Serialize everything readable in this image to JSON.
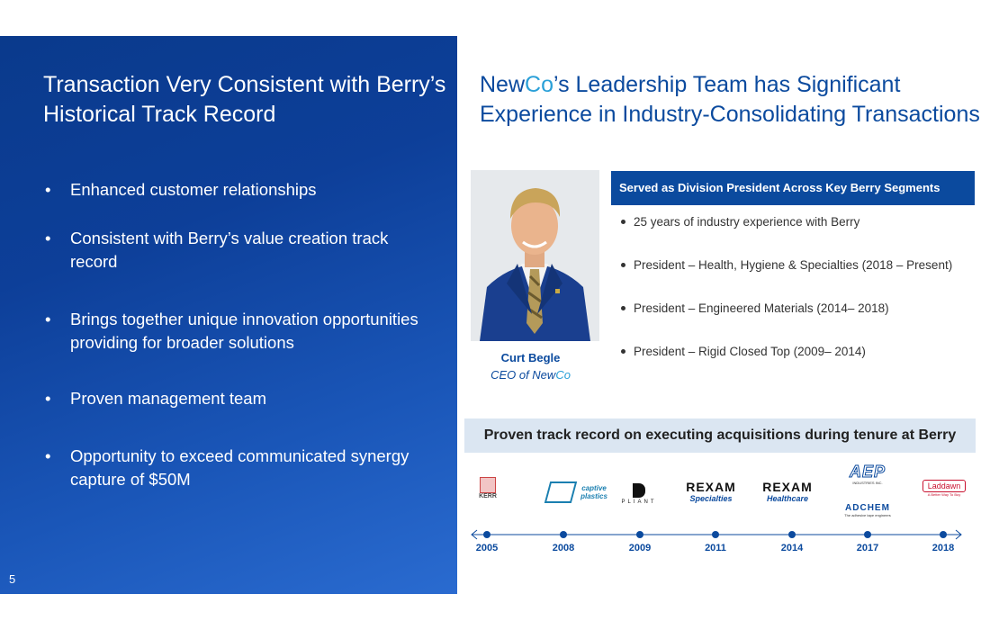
{
  "left": {
    "title_line1": "Transaction Very Consistent with Berry’s",
    "title_line2": "Historical Track Record",
    "bullets": [
      "Enhanced customer relationships",
      "Consistent with Berry’s value creation track record",
      "Brings together unique innovation opportunities providing for broader solutions",
      "Proven management team",
      "Opportunity to exceed communicated synergy capture of $50M"
    ],
    "page_number": "5"
  },
  "right": {
    "title_newco_a": "New",
    "title_newco_b": "Co",
    "title_rest_line1": "’s Leadership Team has Significant",
    "title_line2": "Experience in Industry-Consolidating Transactions",
    "ceo_name": "Curt Begle",
    "ceo_role_a": "CEO of New",
    "ceo_role_b": "Co",
    "division_header": "Served as Division President Across Key Berry Segments",
    "experience": [
      "25 years of industry experience with Berry",
      "President – Health, Hygiene & Specialties (2018 – Present)",
      "President – Engineered Materials (2014– 2018)",
      "President – Rigid Closed Top (2009– 2014)"
    ],
    "track_header": "Proven track record on executing acquisitions during tenure at Berry",
    "acquisitions": [
      {
        "year": "2005",
        "logo": "KERR"
      },
      {
        "year": "2008",
        "logo": "captive plastics"
      },
      {
        "year": "2009",
        "logo": "PLIANT"
      },
      {
        "year": "2011",
        "logo": "REXAM",
        "sub": "Specialties"
      },
      {
        "year": "2014",
        "logo": "REXAM",
        "sub": "Healthcare"
      },
      {
        "year": "2017",
        "logo": "AEP",
        "sub": "INDUSTRIES INC.",
        "logo2": "ADCHEM",
        "sub2": "The adhesive tape engineers"
      },
      {
        "year": "2018",
        "logo": "Laddawn",
        "sub": "A Better Way To Buy"
      }
    ]
  },
  "colors": {
    "brand_blue": "#0b4a9e",
    "accent_cyan": "#2aa0d8",
    "rexam_red": "#d62828",
    "laddawn_red": "#c8102e"
  }
}
